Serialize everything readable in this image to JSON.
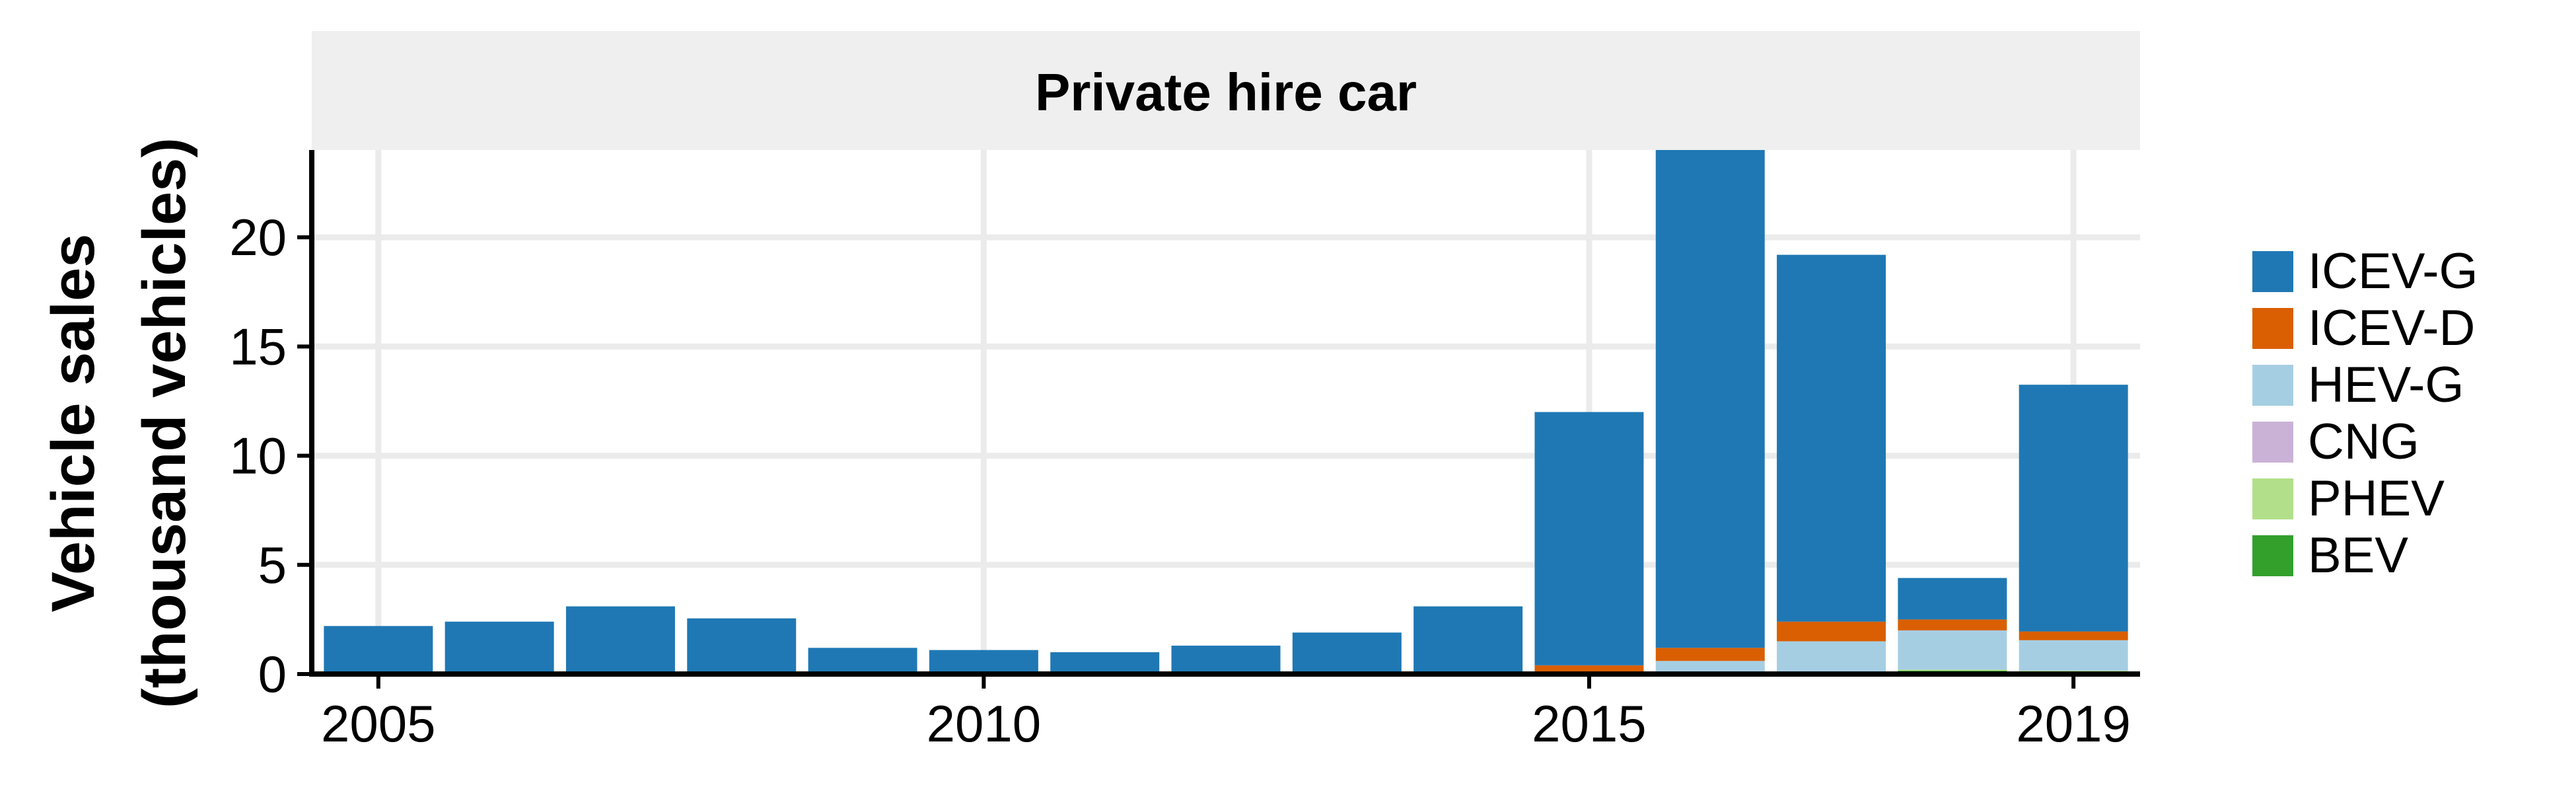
{
  "chart_data": {
    "type": "bar",
    "stacked": true,
    "facet_title": "Private hire car",
    "ylabel_line1": "Vehicle sales",
    "ylabel_line2": "(thousand vehicles)",
    "x": [
      2005,
      2006,
      2007,
      2008,
      2009,
      2010,
      2011,
      2012,
      2013,
      2014,
      2015,
      2016,
      2017,
      2018,
      2019
    ],
    "x_ticks": [
      2005,
      2010,
      2015,
      2019
    ],
    "y_ticks": [
      0,
      5,
      10,
      15,
      20
    ],
    "ylim": [
      0,
      24
    ],
    "grid": true,
    "legend_position": "right",
    "series": [
      {
        "name": "BEV",
        "color": "#33a02c",
        "values": [
          0,
          0,
          0,
          0,
          0,
          0,
          0,
          0,
          0,
          0,
          0,
          0,
          0,
          0.15,
          0.1
        ]
      },
      {
        "name": "PHEV",
        "color": "#b2df8a",
        "values": [
          0,
          0,
          0,
          0,
          0,
          0,
          0,
          0,
          0,
          0,
          0,
          0,
          0,
          0.05,
          0.05
        ]
      },
      {
        "name": "CNG",
        "color": "#cab2d6",
        "values": [
          0,
          0,
          0,
          0,
          0,
          0,
          0,
          0,
          0,
          0,
          0,
          0,
          0,
          0,
          0
        ]
      },
      {
        "name": "HEV-G",
        "color": "#a6cee3",
        "values": [
          0,
          0,
          0,
          0,
          0,
          0,
          0,
          0,
          0,
          0,
          0.1,
          0.6,
          1.5,
          1.8,
          1.4
        ]
      },
      {
        "name": "ICEV-D",
        "color": "#d95f02",
        "values": [
          0,
          0,
          0,
          0.05,
          0,
          0,
          0,
          0,
          0,
          0.1,
          0.3,
          0.6,
          0.9,
          0.5,
          0.4
        ]
      },
      {
        "name": "ICEV-G",
        "color": "#1f78b4",
        "values": [
          2.2,
          2.4,
          3.1,
          2.5,
          1.2,
          1.1,
          1.0,
          1.3,
          1.9,
          3.0,
          11.6,
          22.8,
          16.8,
          1.9,
          11.3
        ]
      }
    ],
    "legend_order": [
      "ICEV-G",
      "ICEV-D",
      "HEV-G",
      "CNG",
      "PHEV",
      "BEV"
    ]
  }
}
